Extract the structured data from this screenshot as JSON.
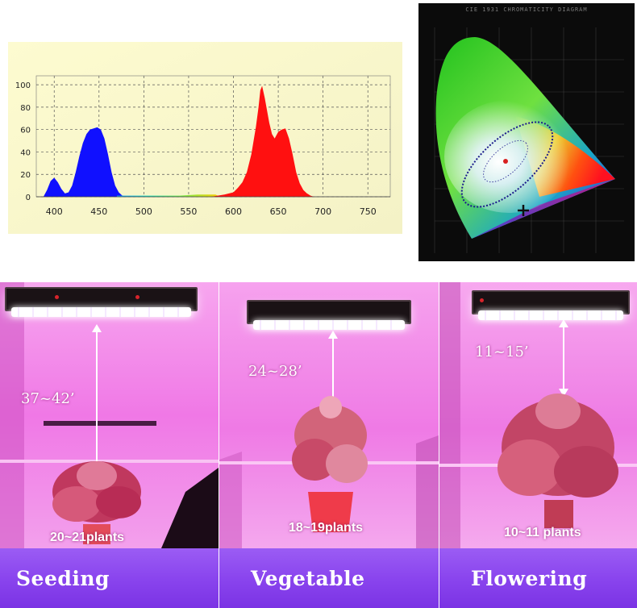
{
  "chart_data": {
    "type": "area",
    "title": "",
    "xlabel": "",
    "ylabel": "",
    "xlim": [
      380,
      775
    ],
    "ylim": [
      0,
      108
    ],
    "x_ticks": [
      400,
      450,
      500,
      550,
      600,
      650,
      700,
      750
    ],
    "y_ticks": [
      0,
      20,
      40,
      60,
      80,
      100
    ],
    "grid": true,
    "series": [
      {
        "name": "blue",
        "color": "#1010ff",
        "x": [
          388,
          392,
          396,
          400,
          404,
          408,
          412,
          416,
          420,
          424,
          428,
          432,
          436,
          440,
          444,
          448,
          452,
          456,
          460,
          464,
          468,
          472,
          476,
          480
        ],
        "y": [
          0,
          6,
          14,
          17,
          13,
          7,
          3,
          4,
          10,
          22,
          36,
          48,
          56,
          60,
          61,
          62,
          60,
          52,
          38,
          22,
          10,
          4,
          1,
          0
        ]
      },
      {
        "name": "cyan-green-yellow",
        "color": "#40d0a0",
        "x": [
          470,
          480,
          500,
          520,
          540,
          560,
          580,
          585
        ],
        "y": [
          1,
          1,
          1,
          1,
          1,
          2,
          2,
          0
        ]
      },
      {
        "name": "red",
        "color": "#ff1010",
        "x": [
          575,
          590,
          600,
          605,
          610,
          615,
          620,
          625,
          628,
          630,
          632,
          635,
          640,
          643,
          646,
          650,
          654,
          658,
          662,
          666,
          670,
          674,
          678,
          682,
          686,
          690
        ],
        "y": [
          0,
          2,
          4,
          8,
          13,
          22,
          38,
          62,
          80,
          95,
          99,
          88,
          66,
          56,
          52,
          58,
          60,
          61,
          52,
          38,
          22,
          12,
          6,
          3,
          1,
          0
        ]
      }
    ]
  },
  "cie": {
    "title": "CIE 1931 CHROMATICITY DIAGRAM",
    "bg_color": "#0b0b0b"
  },
  "panels": [
    {
      "distance": "37~42’",
      "plants": "20~21plants",
      "label": "Seeding"
    },
    {
      "distance": "24~28’",
      "plants": "18~19plants",
      "label": "Vegetable"
    },
    {
      "distance": "11~15’",
      "plants": "10~11 plants",
      "label": "Flowering"
    }
  ],
  "colors": {
    "tent_pink": "#f28de8",
    "band_purple": "#8a45ee",
    "chart_bg": "#fdfbd0"
  }
}
